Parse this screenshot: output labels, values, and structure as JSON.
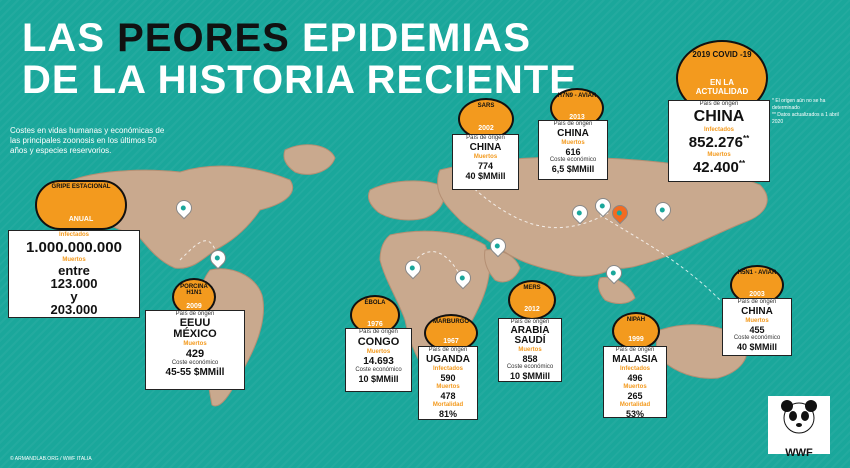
{
  "title_part1": "LAS ",
  "title_part2": "PEORES",
  "title_part3": " EPIDEMIAS",
  "title_line2": "DE LA HISTORIA RECIENTE",
  "subtitle": "Costes en vidas humanas y económicas de las principales zoonosis en los últimos 50 años y especies reservorios.",
  "footnote": "© ARMANDLAB.ORG / WWF ITALIA",
  "notes": [
    "* El origen aún no se ha determinado",
    "** Datos actualizados a 1 abril 2020"
  ],
  "logo_text": "WWF",
  "gripe": {
    "name": "GRIPE ESTACIONAL",
    "tag": "ANUAL",
    "infected_label": "Infectados",
    "infected": "1.000.000.000",
    "deaths_label": "Muertos",
    "deaths_1": "entre",
    "deaths_2": "123.000",
    "deaths_3": "y",
    "deaths_4": "203.000"
  },
  "porcina": {
    "name": "PORCINA H1N1",
    "year": "2009",
    "origin_label": "País de origen",
    "origin": "EEUU",
    "origin2": "MÉXICO",
    "deaths_label": "Muertos",
    "deaths": "429",
    "cost_label": "Coste económico",
    "cost": "45-55 $MMill"
  },
  "ebola": {
    "name": "ÉBOLA",
    "year": "1976",
    "origin_label": "País de origen",
    "origin": "CONGO",
    "deaths_label": "Muertos",
    "deaths": "14.693",
    "cost_label": "Coste económico",
    "cost": "10 $MMill"
  },
  "marburgo": {
    "name": "MARBURGO",
    "year": "1967",
    "origin_label": "País de origen",
    "origin": "UGANDA",
    "infected_label": "Infectados",
    "infected": "590",
    "deaths_label": "Muertos",
    "deaths": "478",
    "mort_label": "Mortalidad",
    "mort": "81%"
  },
  "mers": {
    "name": "MERS",
    "year": "2012",
    "origin_label": "País de origen",
    "origin": "ARABIA",
    "origin2": "SAUDÍ",
    "deaths_label": "Muertos",
    "deaths": "858",
    "cost_label": "Coste económico",
    "cost": "10 $MMill"
  },
  "nipah": {
    "name": "NIPAH",
    "year": "1999",
    "origin_label": "País de origen",
    "origin": "MALASIA",
    "infected_label": "Infectados",
    "infected": "496",
    "deaths_label": "Muertos",
    "deaths": "265",
    "mort_label": "Mortalidad",
    "mort": "53%"
  },
  "sars": {
    "name": "SARS",
    "year": "2002",
    "origin_label": "País de origen",
    "origin": "CHINA",
    "deaths_label": "Muertos",
    "deaths": "774",
    "cost_label": "Coste económico",
    "cost": "40 $MMill"
  },
  "h7n9": {
    "name": "H7N9 - AVIAR",
    "year": "2013",
    "origin_label": "País de origen",
    "origin": "CHINA",
    "deaths_label": "Muertos",
    "deaths": "616",
    "cost_label": "Coste económico",
    "cost": "6,5 $MMill"
  },
  "h5n1": {
    "name": "H5N1 - AVIAR",
    "year": "2003",
    "origin_label": "País de origen",
    "origin": "CHINA",
    "deaths_label": "Muertos",
    "deaths": "455",
    "cost_label": "Coste económico",
    "cost": "40 $MMill"
  },
  "covid": {
    "name": "2019 COVID -19",
    "tag": "EN LA ACTUALIDAD",
    "origin_label": "País de origen",
    "origin": "CHINA",
    "infected_label": "Infectados",
    "infected": "852.276",
    "infected_mark": "**",
    "deaths_label": "Muertos",
    "deaths": "42.400",
    "deaths_mark": "**"
  },
  "colors": {
    "background": "#1aa79b",
    "accent": "#f39a1e",
    "land": "#c9a98e"
  }
}
